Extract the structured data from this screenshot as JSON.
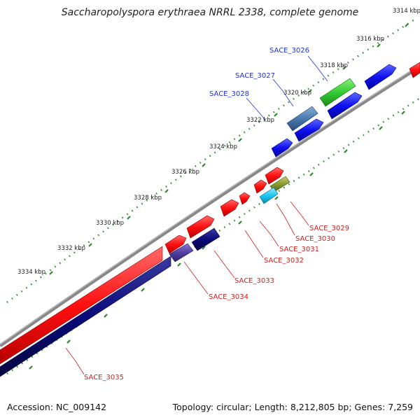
{
  "title": "Saccharopolyspora erythraea NRRL 2338, complete genome",
  "accession": "Accession: NC_009142",
  "summary": "Topology: circular; Length: 8,212,805 bp; Genes: 7,259",
  "ticks": [
    "3314 kbp",
    "3316 kbp",
    "3318 kbp",
    "3320 kbp",
    "3322 kbp",
    "3324 kbp",
    "3326 kbp",
    "3328 kbp",
    "3330 kbp",
    "3332 kbp",
    "3334 kbp"
  ],
  "genes": [
    {
      "label": "SACE_3026",
      "color": "#2233cc"
    },
    {
      "label": "SACE_3027",
      "color": "#2233cc"
    },
    {
      "label": "SACE_3028",
      "color": "#2233cc"
    },
    {
      "label": "SACE_3029",
      "color": "#cc2222"
    },
    {
      "label": "SACE_3030",
      "color": "#cc2222"
    },
    {
      "label": "SACE_3031",
      "color": "#cc2222"
    },
    {
      "label": "SACE_3032",
      "color": "#cc2222"
    },
    {
      "label": "SACE_3033",
      "color": "#cc2222"
    },
    {
      "label": "SACE_3034",
      "color": "#cc2222"
    },
    {
      "label": "SACE_3035",
      "color": "#cc2222"
    }
  ],
  "colors": {
    "forward": "#ff1a1a",
    "reverse_blue": "#1010ee",
    "navy": "#0a0a7a",
    "green": "#33cc33",
    "steel": "#4a7ab0",
    "cyan": "#19c8f0",
    "olive": "#8a9a30",
    "purple": "#5040a0",
    "backbone": "#888888",
    "tick_dot": "#2a8a2a"
  }
}
